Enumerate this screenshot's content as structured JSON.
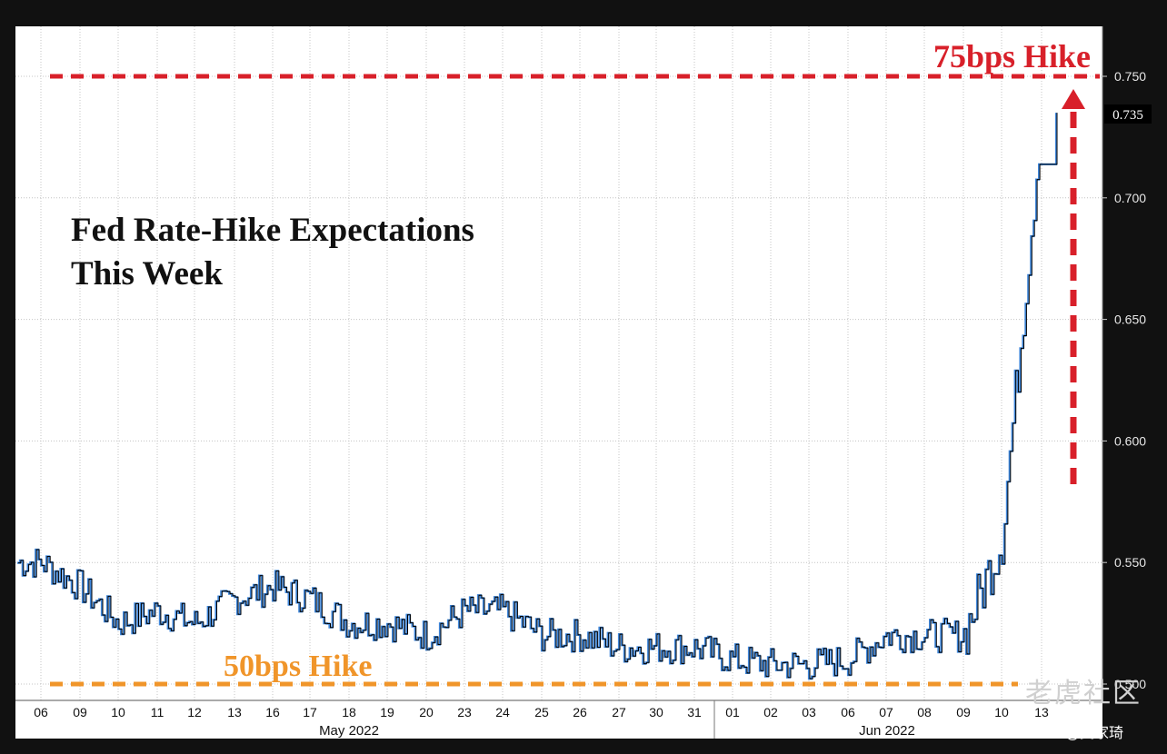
{
  "chart_data": {
    "type": "line",
    "title": "Fed Rate-Hike Expectations",
    "subtitle": "This Week",
    "ylim": [
      0.5,
      0.75
    ],
    "yticks": [
      0.5,
      0.55,
      0.6,
      0.65,
      0.7,
      0.75
    ],
    "ytick_labels": [
      "0.500",
      "0.550",
      "0.600",
      "0.650",
      "0.700",
      "0.750"
    ],
    "last_value": 0.735,
    "last_value_label": "0.735",
    "x_tick_labels": [
      "06",
      "09",
      "10",
      "11",
      "12",
      "13",
      "16",
      "17",
      "18",
      "19",
      "20",
      "23",
      "24",
      "25",
      "26",
      "27",
      "30",
      "31",
      "01",
      "02",
      "03",
      "06",
      "07",
      "08",
      "09",
      "10",
      "13"
    ],
    "month_labels": [
      "May 2022",
      "Jun 2022"
    ],
    "reference_lines": [
      {
        "label": "75bps Hike",
        "value": 0.75,
        "color": "#d8202a"
      },
      {
        "label": "50bps Hike",
        "value": 0.5,
        "color": "#f0952a"
      }
    ],
    "grid": true,
    "series": [
      {
        "x": [
          "06",
          "09",
          "10",
          "11",
          "12",
          "13",
          "16",
          "17",
          "18",
          "19",
          "20",
          "23",
          "24",
          "25",
          "26",
          "27",
          "30",
          "31",
          "01",
          "02",
          "03",
          "06",
          "07",
          "08",
          "09",
          "10",
          "13"
        ],
        "values": [
          0.55,
          0.54,
          0.525,
          0.53,
          0.525,
          0.535,
          0.54,
          0.535,
          0.525,
          0.525,
          0.52,
          0.53,
          0.53,
          0.52,
          0.52,
          0.515,
          0.515,
          0.515,
          0.51,
          0.508,
          0.508,
          0.51,
          0.52,
          0.52,
          0.52,
          0.56,
          0.735
        ]
      }
    ],
    "colors": {
      "line_dark": "#000000",
      "line_blue": "#3f86d9",
      "background": "#ffffff",
      "grid": "#c4c4c4"
    }
  },
  "watermark": {
    "brand": "老虎社区",
    "author": "@吴家琦"
  }
}
